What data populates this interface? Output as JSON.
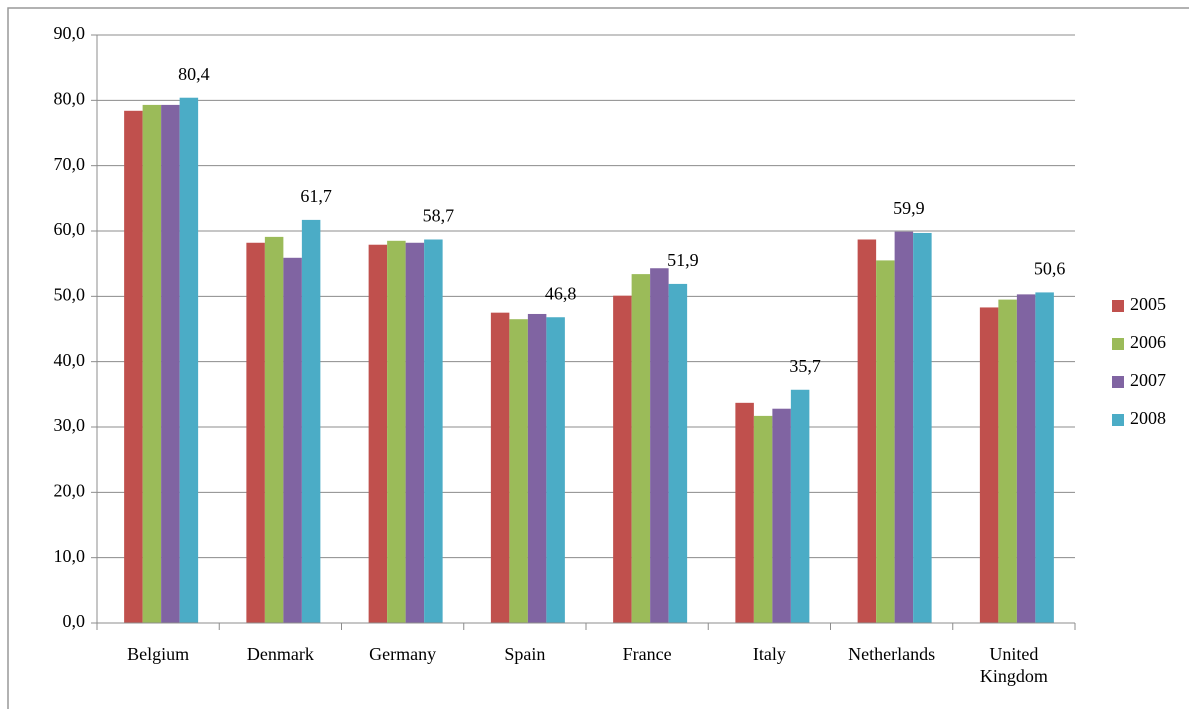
{
  "chart_data": {
    "type": "bar",
    "categories": [
      "Belgium",
      "Denmark",
      "Germany",
      "Spain",
      "France",
      "Italy",
      "Netherlands",
      "United Kingdom"
    ],
    "series": [
      {
        "name": "2005",
        "color": "#c0504d",
        "values": [
          78.4,
          58.2,
          57.9,
          47.5,
          50.1,
          33.7,
          58.7,
          48.3
        ]
      },
      {
        "name": "2006",
        "color": "#9bbb59",
        "values": [
          79.3,
          59.1,
          58.5,
          46.5,
          53.4,
          31.7,
          55.5,
          49.5
        ]
      },
      {
        "name": "2007",
        "color": "#8064a2",
        "values": [
          79.3,
          55.9,
          58.2,
          47.3,
          54.3,
          32.8,
          59.9,
          50.3
        ],
        "value_labels": [
          null,
          null,
          null,
          null,
          null,
          null,
          "59,9",
          null
        ]
      },
      {
        "name": "2008",
        "color": "#4bacc6",
        "values": [
          80.4,
          61.7,
          58.7,
          46.8,
          51.9,
          35.7,
          59.7,
          50.6
        ],
        "value_labels": [
          "80,4",
          "61,7",
          "58,7",
          "46,8",
          "51,9",
          "35,7",
          null,
          "50,6"
        ]
      }
    ],
    "ylim": [
      0,
      90
    ],
    "yticks": [
      {
        "value": 0,
        "label": "0,0"
      },
      {
        "value": 10,
        "label": "10,0"
      },
      {
        "value": 20,
        "label": "20,0"
      },
      {
        "value": 30,
        "label": "30,0"
      },
      {
        "value": 40,
        "label": "40,0"
      },
      {
        "value": 50,
        "label": "50,0"
      },
      {
        "value": 60,
        "label": "60,0"
      },
      {
        "value": 70,
        "label": "70,0"
      },
      {
        "value": 80,
        "label": "80,0"
      },
      {
        "value": 90,
        "label": "90,0"
      }
    ],
    "grid": true,
    "legend": "right"
  }
}
